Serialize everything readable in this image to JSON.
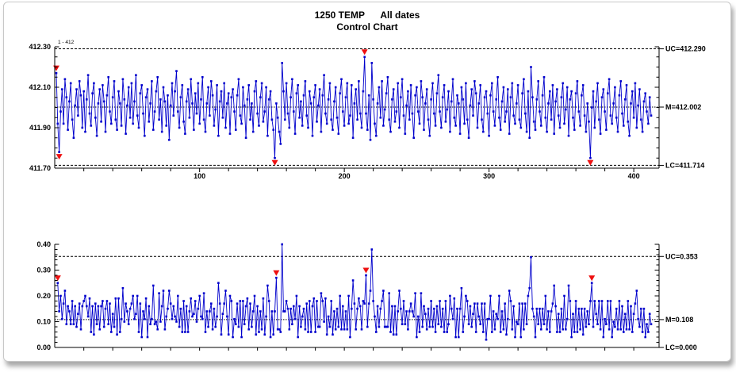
{
  "title": {
    "line1": "1250 TEMP      All dates",
    "line2": "Control Chart"
  },
  "colors": {
    "series": "#0000cc",
    "special_marker": "#ee1111",
    "axis": "#000000",
    "control_line": "#000000",
    "window_border": "#c8c8c8"
  },
  "chart_data": [
    {
      "type": "line",
      "name": "Individuals control chart",
      "note": "1 - 412",
      "n_points": 412,
      "x_axis": {
        "tick_step": 20,
        "labeled_ticks": [
          100,
          200,
          300,
          400
        ]
      },
      "y_axis": {
        "min": 411.7,
        "max": 412.3,
        "major_step": 0.2,
        "minor_step": 0.05,
        "tick_labels": [
          "412.30",
          "412.10",
          "411.90",
          "411.70"
        ]
      },
      "control_lines": {
        "uc": 412.29,
        "uc_label": "UC=412.290",
        "m": 412.002,
        "m_label": "M=412.002",
        "lc": 411.714,
        "lc_label": "LC=411.714"
      },
      "values_encoding": {
        "base": 412.0,
        "scale": 0.01
      },
      "deviations_centi": [
        17,
        -8,
        -22,
        -2,
        9,
        -8,
        14,
        5,
        -11,
        3,
        12,
        -6,
        -15,
        1,
        9,
        -4,
        13,
        6,
        -10,
        8,
        -12,
        4,
        16,
        -3,
        -9,
        7,
        12,
        -5,
        -14,
        2,
        9,
        -7,
        11,
        3,
        -12,
        6,
        15,
        -2,
        -8,
        5,
        13,
        -6,
        -11,
        8,
        2,
        -9,
        14,
        4,
        -13,
        1,
        10,
        -5,
        12,
        -8,
        3,
        16,
        -4,
        -10,
        7,
        11,
        -3,
        -14,
        5,
        9,
        -7,
        2,
        13,
        -11,
        -2,
        8,
        15,
        -6,
        4,
        -12,
        10,
        3,
        -9,
        6,
        -16,
        1,
        12,
        -4,
        8,
        18,
        -2,
        -10,
        5,
        11,
        -7,
        -13,
        3,
        9,
        -5,
        14,
        2,
        -11,
        7,
        -3,
        12,
        -8,
        4,
        15,
        -6,
        -12,
        2,
        10,
        -4,
        13,
        6,
        -9,
        -1,
        11,
        -14,
        3,
        8,
        -5,
        12,
        -10,
        2,
        7,
        -13,
        5,
        9,
        -2,
        -11,
        6,
        14,
        -4,
        -8,
        10,
        1,
        -15,
        4,
        11,
        -6,
        2,
        -12,
        8,
        13,
        -3,
        -9,
        5,
        12,
        -7,
        -2,
        10,
        -14,
        4,
        8,
        -6,
        -11,
        -25,
        2,
        -5,
        -12,
        -18,
        22,
        8,
        -6,
        12,
        -3,
        -10,
        5,
        14,
        -2,
        -13,
        7,
        11,
        -5,
        3,
        -9,
        6,
        13,
        -4,
        -10,
        8,
        2,
        -14,
        5,
        11,
        -7,
        1,
        9,
        -12,
        6,
        16,
        -3,
        -8,
        4,
        12,
        -6,
        -11,
        3,
        10,
        -5,
        -13,
        7,
        14,
        -2,
        -9,
        5,
        12,
        -8,
        -4,
        11,
        -15,
        2,
        9,
        -6,
        13,
        -3,
        -10,
        8,
        25,
        -3,
        -11,
        6,
        -16,
        22,
        4,
        -8,
        -14,
        2,
        10,
        -5,
        13,
        -9,
        -1,
        7,
        15,
        -6,
        -12,
        4,
        9,
        -7,
        -2,
        12,
        -10,
        5,
        14,
        -4,
        -13,
        1,
        8,
        -6,
        11,
        -3,
        -15,
        6,
        10,
        -2,
        -8,
        13,
        5,
        -11,
        2,
        9,
        -6,
        -14,
        4,
        12,
        -3,
        -9,
        7,
        16,
        -2,
        -10,
        5,
        11,
        -7,
        -1,
        8,
        -12,
        3,
        14,
        -5,
        -9,
        6,
        2,
        -13,
        10,
        4,
        -8,
        12,
        -6,
        -15,
        1,
        9,
        -4,
        13,
        7,
        -10,
        2,
        11,
        -6,
        -12,
        5,
        8,
        -3,
        -14,
        6,
        12,
        -2,
        -9,
        4,
        15,
        -5,
        -11,
        3,
        10,
        -7,
        -2,
        9,
        -13,
        5,
        12,
        -4,
        -8,
        2,
        11,
        -6,
        -10,
        7,
        14,
        -3,
        -12,
        8,
        -15,
        20,
        5,
        -7,
        -11,
        4,
        13,
        -2,
        -9,
        6,
        15,
        -5,
        -12,
        2,
        8,
        -6,
        11,
        -13,
        3,
        9,
        -4,
        -10,
        5,
        12,
        -8,
        -1,
        10,
        -14,
        4,
        8,
        -5,
        -11,
        7,
        13,
        -2,
        -9,
        6,
        11,
        -4,
        -12,
        2,
        -7,
        -25,
        0,
        8,
        -10,
        3,
        12,
        -6,
        -13,
        5,
        9,
        -2,
        -11,
        7,
        14,
        -4,
        -8,
        2,
        10,
        -5,
        -12,
        6,
        13,
        -3,
        -9,
        4,
        11,
        -7,
        -14,
        2,
        8,
        -5,
        12,
        -10,
        1,
        9,
        -6,
        -12,
        3,
        7,
        -2,
        -8,
        5,
        -4
      ],
      "special_point_indices": [
        0,
        2,
        151,
        213,
        369
      ]
    },
    {
      "type": "line",
      "name": "Moving range control chart",
      "derived_from": "absolute difference of consecutive individuals values",
      "x_axis": {
        "tick_step": 20,
        "labeled_ticks": []
      },
      "y_axis": {
        "min": 0.0,
        "max": 0.4,
        "major_step": 0.1,
        "minor_step": 0.02,
        "tick_labels": [
          "0.40",
          "0.30",
          "0.20",
          "0.10",
          "0.00"
        ]
      },
      "control_lines": {
        "uc": 0.353,
        "uc_label": "UC=0.353",
        "m": 0.108,
        "m_label": "M=0.108",
        "lc": 0.0,
        "lc_label": "LC=0.000"
      },
      "special_point_indices": [
        1,
        152,
        214,
        370
      ]
    }
  ]
}
